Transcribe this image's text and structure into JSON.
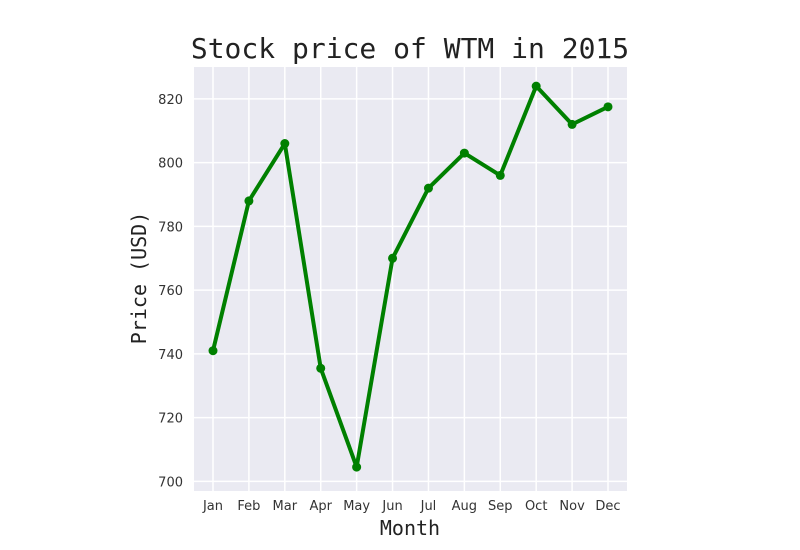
{
  "chart_data": {
    "type": "line",
    "title": "Stock price of WTM in 2015",
    "xlabel": "Month",
    "ylabel": "Price (USD)",
    "categories": [
      "Jan",
      "Feb",
      "Mar",
      "Apr",
      "May",
      "Jun",
      "Jul",
      "Aug",
      "Sep",
      "Oct",
      "Nov",
      "Dec"
    ],
    "series": [
      {
        "values": [
          741,
          788,
          806,
          735.5,
          704.5,
          770,
          792,
          803,
          796,
          824,
          812,
          817.5
        ]
      }
    ],
    "yticks": [
      700,
      720,
      740,
      760,
      780,
      800,
      820
    ],
    "ylim": [
      697,
      830
    ],
    "grid": true,
    "line_color": "#008000",
    "background_color": "#eaeaf2",
    "grid_color": "#ffffff"
  }
}
